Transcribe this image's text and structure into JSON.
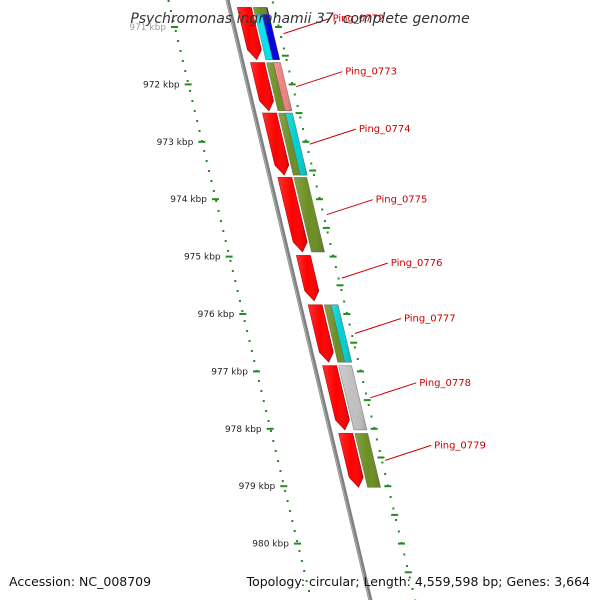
{
  "title": "Psychromonas ingrahamii 37, complete genome",
  "footer": {
    "accession_label": "Accession:",
    "accession": "NC_008709",
    "topology_label": "Topology:",
    "topology": "circular;",
    "length_label": "Length:",
    "length": "4,559,598 bp;",
    "genes_label": "Genes:",
    "genes": "3,664"
  },
  "ticks": [
    "971 kbp",
    "972 kbp",
    "973 kbp",
    "974 kbp",
    "975 kbp",
    "976 kbp",
    "977 kbp",
    "978 kbp",
    "979 kbp",
    "980 kbp"
  ],
  "genes": [
    {
      "label": "Ping_0772",
      "start_kbp": 970.66,
      "end_kbp": 971.57
    },
    {
      "label": "Ping_0773",
      "start_kbp": 971.62,
      "end_kbp": 972.46
    },
    {
      "label": "Ping_0774",
      "start_kbp": 972.5,
      "end_kbp": 973.58
    },
    {
      "label": "Ping_0775",
      "start_kbp": 973.62,
      "end_kbp": 974.92
    },
    {
      "label": "Ping_0776",
      "start_kbp": 974.98,
      "end_kbp": 975.77
    },
    {
      "label": "Ping_0777",
      "start_kbp": 975.84,
      "end_kbp": 976.84
    },
    {
      "label": "Ping_0778",
      "start_kbp": 976.9,
      "end_kbp": 978.02
    },
    {
      "label": "Ping_0779",
      "start_kbp": 978.08,
      "end_kbp": 979.02
    }
  ],
  "cog_blocks": [
    {
      "start_kbp": 970.66,
      "end_kbp": 971.57,
      "color": "#00e0f0"
    },
    {
      "start_kbp": 970.66,
      "end_kbp": 971.57,
      "color": "#0000dd"
    },
    {
      "start_kbp": 970.66,
      "end_kbp": 970.78,
      "color": "#6b8e23"
    },
    {
      "start_kbp": 971.62,
      "end_kbp": 972.46,
      "color": "#6b8e23"
    },
    {
      "start_kbp": 971.62,
      "end_kbp": 972.46,
      "color": "#f08080"
    },
    {
      "start_kbp": 972.5,
      "end_kbp": 973.58,
      "color": "#6b8e23"
    },
    {
      "start_kbp": 972.5,
      "end_kbp": 973.58,
      "color": "#00ced1"
    },
    {
      "start_kbp": 973.62,
      "end_kbp": 974.92,
      "color": "#6b8e23"
    },
    {
      "start_kbp": 975.84,
      "end_kbp": 976.84,
      "color": "#6b8e23"
    },
    {
      "start_kbp": 975.84,
      "end_kbp": 976.84,
      "color": "#00ced1"
    },
    {
      "start_kbp": 976.9,
      "end_kbp": 978.02,
      "color": "#c0c0c0"
    },
    {
      "start_kbp": 978.08,
      "end_kbp": 979.02,
      "color": "#6b8e23"
    }
  ],
  "colors": {
    "cds": "#ff0000",
    "backbone": "#808080",
    "tick": "#228b22",
    "gene_label": "#cc0000"
  }
}
